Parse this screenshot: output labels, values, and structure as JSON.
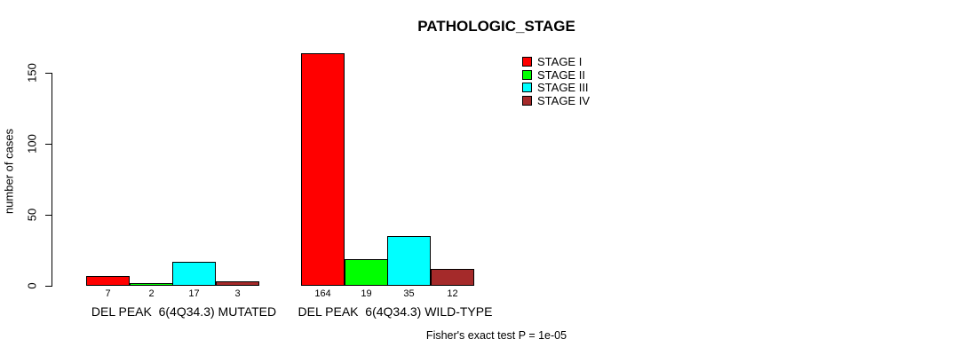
{
  "chart_data": {
    "type": "bar",
    "title": "PATHOLOGIC_STAGE",
    "ylabel": "number of cases",
    "yticks": [
      "0",
      "50",
      "100",
      "150"
    ],
    "ylim": [
      0,
      170
    ],
    "grid": false,
    "legend_position": "top-right",
    "categories": [
      "STAGE I",
      "STAGE II",
      "STAGE III",
      "STAGE IV"
    ],
    "colors": [
      "#FF0000",
      "#00FF00",
      "#00FFFF",
      "#A52A2A"
    ],
    "groups": [
      {
        "key": "mutated",
        "label": "DEL PEAK  6(4Q34.3) MUTATED",
        "values": [
          7,
          2,
          17,
          3
        ]
      },
      {
        "key": "wild-type",
        "label": "DEL PEAK  6(4Q34.3) WILD-TYPE",
        "values": [
          164,
          19,
          35,
          12
        ]
      }
    ],
    "footnote": "Fisher's exact test P = 1e-05"
  }
}
